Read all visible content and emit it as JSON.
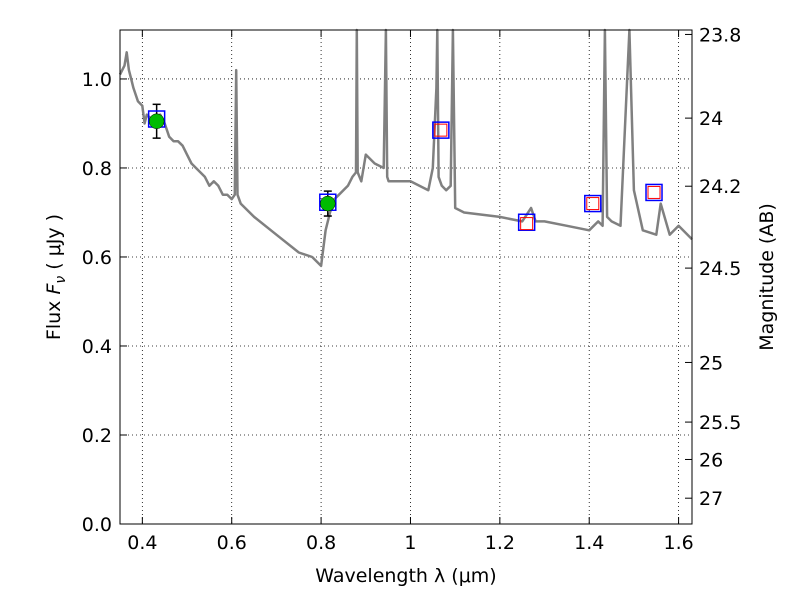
{
  "chart_data": {
    "type": "line",
    "xlabel": "Wavelength  λ (μm)",
    "ylabel": "Flux  F_ν  ( μJy )",
    "ylabel_parts": {
      "prefix": "Flux  ",
      "symbol": "F",
      "sub": "ν",
      "suffix": "  ( μJy )"
    },
    "y2label": "Magnitude (AB)",
    "xlim": [
      0.35,
      1.63
    ],
    "ylim": [
      0.0,
      1.11
    ],
    "grid": true,
    "x_ticks": [
      0.4,
      0.6,
      0.8,
      1.0,
      1.2,
      1.4,
      1.6
    ],
    "x_tick_labels": [
      "0.4",
      "0.6",
      "0.8",
      "1",
      "1.2",
      "1.4",
      "1.6"
    ],
    "y_ticks": [
      0.0,
      0.2,
      0.4,
      0.6,
      0.8,
      1.0
    ],
    "y_tick_labels": [
      "0.0",
      "0.2",
      "0.4",
      "0.6",
      "0.8",
      "1.0"
    ],
    "y2_ticks": [
      {
        "label": "23.8",
        "flux": 1.1
      },
      {
        "label": "24",
        "flux": 0.912
      },
      {
        "label": "24.2",
        "flux": 0.759
      },
      {
        "label": "24.5",
        "flux": 0.575
      },
      {
        "label": "25",
        "flux": 0.363
      },
      {
        "label": "25.5",
        "flux": 0.229
      },
      {
        "label": "26",
        "flux": 0.145
      },
      {
        "label": "27",
        "flux": 0.058
      }
    ],
    "series": [
      {
        "kind": "model-spectrum",
        "color": "#808080",
        "x": [
          0.35,
          0.36,
          0.365,
          0.37,
          0.375,
          0.38,
          0.39,
          0.4,
          0.405,
          0.41,
          0.42,
          0.43,
          0.44,
          0.45,
          0.46,
          0.47,
          0.48,
          0.49,
          0.5,
          0.51,
          0.52,
          0.53,
          0.54,
          0.55,
          0.56,
          0.57,
          0.58,
          0.59,
          0.6,
          0.607,
          0.61,
          0.613,
          0.62,
          0.65,
          0.7,
          0.75,
          0.78,
          0.8,
          0.81,
          0.815,
          0.82,
          0.83,
          0.84,
          0.86,
          0.87,
          0.878,
          0.88,
          0.882,
          0.89,
          0.9,
          0.92,
          0.94,
          0.945,
          0.948,
          0.951,
          0.96,
          1.0,
          1.02,
          1.04,
          1.05,
          1.058,
          1.06,
          1.063,
          1.07,
          1.08,
          1.09,
          1.095,
          1.1,
          1.12,
          1.2,
          1.25,
          1.27,
          1.28,
          1.3,
          1.35,
          1.4,
          1.42,
          1.43,
          1.435,
          1.44,
          1.45,
          1.47,
          1.49,
          1.5,
          1.52,
          1.55,
          1.56,
          1.58,
          1.6,
          1.63
        ],
        "y": [
          1.01,
          1.03,
          1.06,
          1.02,
          1.0,
          0.98,
          0.95,
          0.94,
          0.9,
          0.92,
          0.91,
          0.9,
          0.92,
          0.9,
          0.87,
          0.86,
          0.86,
          0.85,
          0.83,
          0.81,
          0.8,
          0.79,
          0.78,
          0.76,
          0.77,
          0.76,
          0.74,
          0.74,
          0.73,
          0.74,
          1.02,
          0.74,
          0.72,
          0.69,
          0.65,
          0.61,
          0.6,
          0.58,
          0.66,
          0.68,
          0.7,
          0.73,
          0.74,
          0.76,
          0.78,
          0.79,
          1.11,
          0.79,
          0.77,
          0.83,
          0.81,
          0.8,
          1.11,
          0.78,
          0.77,
          0.77,
          0.77,
          0.76,
          0.75,
          0.8,
          0.98,
          1.11,
          0.78,
          0.76,
          0.75,
          0.76,
          1.11,
          0.71,
          0.7,
          0.69,
          0.68,
          0.71,
          0.68,
          0.68,
          0.67,
          0.66,
          0.68,
          0.67,
          1.11,
          0.69,
          0.68,
          0.67,
          1.11,
          0.75,
          0.66,
          0.65,
          0.72,
          0.65,
          0.67,
          0.64
        ]
      }
    ],
    "photometry": {
      "detections": [
        {
          "x": 0.432,
          "y": 0.905,
          "err": 0.038
        },
        {
          "x": 0.815,
          "y": 0.72,
          "err": 0.028
        }
      ],
      "model_points": [
        {
          "x": 0.432,
          "y": 0.91
        },
        {
          "x": 0.815,
          "y": 0.723
        },
        {
          "x": 1.068,
          "y": 0.885
        },
        {
          "x": 1.26,
          "y": 0.678
        },
        {
          "x": 1.408,
          "y": 0.72
        },
        {
          "x": 1.545,
          "y": 0.745
        }
      ],
      "upper_points": [
        {
          "x": 1.068,
          "y": 0.885
        },
        {
          "x": 1.26,
          "y": 0.675
        },
        {
          "x": 1.408,
          "y": 0.72
        },
        {
          "x": 1.545,
          "y": 0.745
        }
      ]
    }
  }
}
